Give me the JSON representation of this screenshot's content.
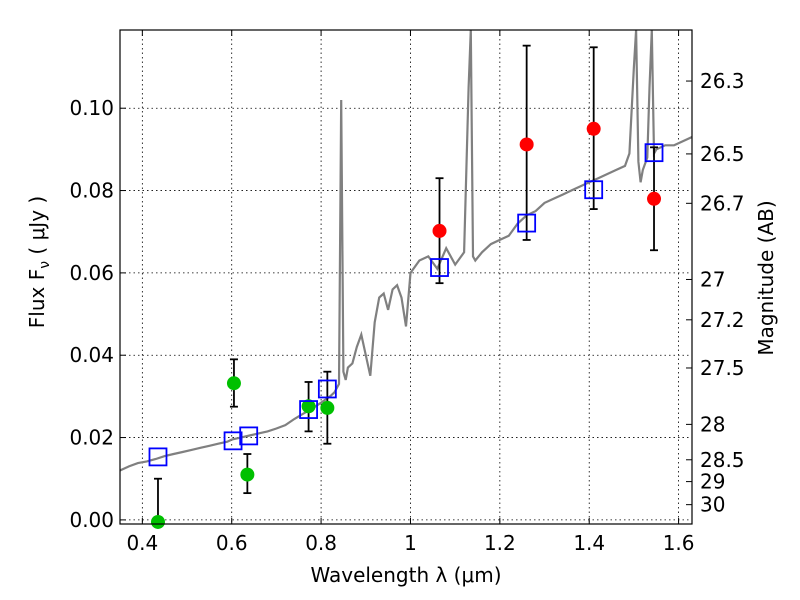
{
  "chart_data": {
    "type": "scatter",
    "xlabel": "Wavelength  λ (μm)",
    "ylabel": "Flux  F",
    "ylabel_sub": "ν",
    "ylabel_unit": "  ( μJy )",
    "ylabel_right": "Magnitude (AB)",
    "xlim": [
      0.35,
      1.63
    ],
    "ylim": [
      -0.001,
      0.119
    ],
    "xticks": [
      0.4,
      0.6,
      0.8,
      1.0,
      1.2,
      1.4,
      1.6
    ],
    "xtick_labels": [
      "0.4",
      "0.6",
      "0.8",
      "1",
      "1.2",
      "1.4",
      "1.6"
    ],
    "yticks": [
      0.0,
      0.02,
      0.04,
      0.06,
      0.08,
      0.1
    ],
    "ytick_labels": [
      "0.00",
      "0.02",
      "0.04",
      "0.06",
      "0.08",
      "0.10"
    ],
    "right_ticks": [
      {
        "label": "26.3",
        "flux": 0.1066
      },
      {
        "label": "26.5",
        "flux": 0.0889
      },
      {
        "label": "26.7",
        "flux": 0.0769
      },
      {
        "label": "27",
        "flux": 0.0584
      },
      {
        "label": "27.2",
        "flux": 0.0486
      },
      {
        "label": "27.5",
        "flux": 0.0369
      },
      {
        "label": "28",
        "flux": 0.0232
      },
      {
        "label": "28.5",
        "flux": 0.0146
      },
      {
        "label": "29",
        "flux": 0.0093
      },
      {
        "label": "30",
        "flux": 0.0037
      }
    ],
    "grid": true,
    "colors": {
      "model": "#808080",
      "green": "#00c000",
      "red": "#ff0000",
      "square": "#0000ff",
      "errorbar": "#000000"
    },
    "model_spectrum": {
      "x": [
        0.35,
        0.37,
        0.39,
        0.41,
        0.43,
        0.45,
        0.47,
        0.49,
        0.51,
        0.53,
        0.55,
        0.57,
        0.59,
        0.6,
        0.62,
        0.64,
        0.66,
        0.68,
        0.7,
        0.72,
        0.74,
        0.76,
        0.78,
        0.8,
        0.82,
        0.83,
        0.84,
        0.845,
        0.85,
        0.855,
        0.86,
        0.87,
        0.88,
        0.89,
        0.9,
        0.91,
        0.92,
        0.93,
        0.94,
        0.95,
        0.96,
        0.97,
        0.98,
        0.99,
        1.0,
        1.02,
        1.04,
        1.06,
        1.08,
        1.1,
        1.12,
        1.13,
        1.135,
        1.14,
        1.145,
        1.16,
        1.18,
        1.2,
        1.22,
        1.24,
        1.26,
        1.28,
        1.3,
        1.32,
        1.34,
        1.36,
        1.38,
        1.4,
        1.42,
        1.44,
        1.46,
        1.48,
        1.49,
        1.5,
        1.505,
        1.51,
        1.515,
        1.52,
        1.53,
        1.535,
        1.54,
        1.545,
        1.55,
        1.57,
        1.59,
        1.61,
        1.63
      ],
      "y": [
        0.012,
        0.013,
        0.0138,
        0.0142,
        0.0148,
        0.0155,
        0.016,
        0.0165,
        0.017,
        0.0175,
        0.018,
        0.0185,
        0.019,
        0.0195,
        0.02,
        0.0205,
        0.021,
        0.0215,
        0.0222,
        0.023,
        0.0245,
        0.0258,
        0.027,
        0.0285,
        0.03,
        0.031,
        0.033,
        0.102,
        0.036,
        0.034,
        0.037,
        0.038,
        0.042,
        0.045,
        0.04,
        0.035,
        0.048,
        0.054,
        0.055,
        0.051,
        0.056,
        0.057,
        0.054,
        0.047,
        0.06,
        0.063,
        0.064,
        0.061,
        0.066,
        0.062,
        0.065,
        0.105,
        0.119,
        0.064,
        0.063,
        0.065,
        0.067,
        0.068,
        0.069,
        0.072,
        0.074,
        0.075,
        0.077,
        0.078,
        0.079,
        0.08,
        0.081,
        0.082,
        0.083,
        0.084,
        0.085,
        0.086,
        0.089,
        0.11,
        0.119,
        0.087,
        0.082,
        0.085,
        0.088,
        0.105,
        0.119,
        0.089,
        0.09,
        0.091,
        0.091,
        0.092,
        0.093
      ]
    },
    "series": [
      {
        "marker": "circle",
        "color": "#00c000",
        "points": [
          {
            "x": 0.435,
            "y": -0.0005,
            "yerr_lo": 0.0,
            "yerr_hi": 0.01
          },
          {
            "x": 0.605,
            "y": 0.0332,
            "yerr_lo": 0.0275,
            "yerr_hi": 0.039
          },
          {
            "x": 0.635,
            "y": 0.011,
            "yerr_lo": 0.0065,
            "yerr_hi": 0.016
          },
          {
            "x": 0.772,
            "y": 0.0276,
            "yerr_lo": 0.0215,
            "yerr_hi": 0.0335
          },
          {
            "x": 0.814,
            "y": 0.0272,
            "yerr_lo": 0.0185,
            "yerr_hi": 0.036
          }
        ]
      },
      {
        "marker": "circle",
        "color": "#ff0000",
        "points": [
          {
            "x": 1.065,
            "y": 0.0702,
            "yerr_lo": 0.0575,
            "yerr_hi": 0.083
          },
          {
            "x": 1.26,
            "y": 0.0912,
            "yerr_lo": 0.068,
            "yerr_hi": 0.1152
          },
          {
            "x": 1.41,
            "y": 0.095,
            "yerr_lo": 0.0755,
            "yerr_hi": 0.1148
          },
          {
            "x": 1.545,
            "y": 0.078,
            "yerr_lo": 0.0655,
            "yerr_hi": 0.0905
          }
        ]
      },
      {
        "marker": "square",
        "color": "#0000ff",
        "points": [
          {
            "x": 0.435,
            "y": 0.0153
          },
          {
            "x": 0.603,
            "y": 0.0192
          },
          {
            "x": 0.638,
            "y": 0.0204
          },
          {
            "x": 0.772,
            "y": 0.0268
          },
          {
            "x": 0.814,
            "y": 0.0318
          },
          {
            "x": 1.065,
            "y": 0.0613
          },
          {
            "x": 1.26,
            "y": 0.0721
          },
          {
            "x": 1.41,
            "y": 0.0802
          },
          {
            "x": 1.545,
            "y": 0.0892
          }
        ]
      }
    ]
  }
}
